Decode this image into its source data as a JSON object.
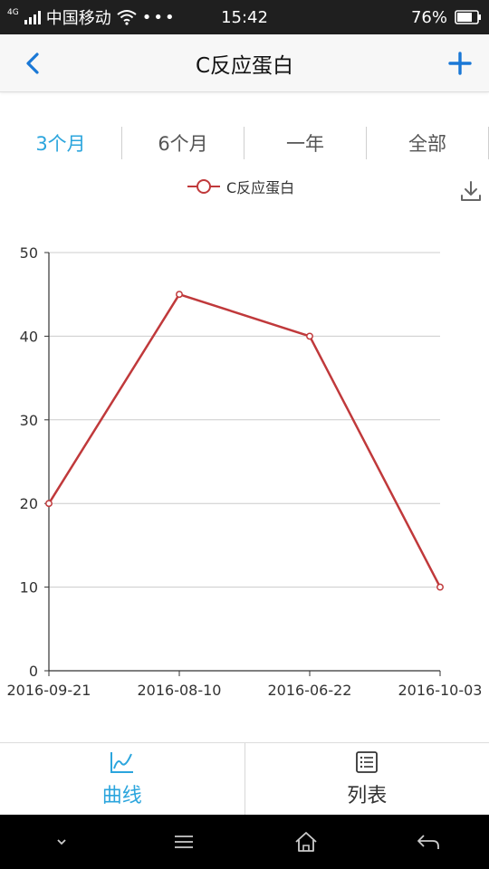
{
  "status_bar": {
    "network_badge": "4G",
    "carrier": "中国移动",
    "more": "•••",
    "time": "15:42",
    "battery": "76%"
  },
  "header": {
    "back_icon": "chevron-left-icon",
    "title": "C反应蛋白",
    "add_icon": "plus-icon"
  },
  "range_tabs": [
    {
      "label": "3个月",
      "active": true
    },
    {
      "label": "6个月",
      "active": false
    },
    {
      "label": "一年",
      "active": false
    },
    {
      "label": "全部",
      "active": false
    }
  ],
  "legend": {
    "label": "C反应蛋白"
  },
  "chart_data": {
    "type": "line",
    "categories": [
      "2016-09-21",
      "2016-08-10",
      "2016-06-22",
      "2016-10-03"
    ],
    "series": [
      {
        "name": "C反应蛋白",
        "values": [
          20,
          45,
          40,
          10
        ],
        "color": "#c0393b"
      }
    ],
    "ylim": [
      0,
      50
    ],
    "yticks": [
      0,
      10,
      20,
      30,
      40,
      50
    ],
    "grid": true,
    "legend_position": "top-center"
  },
  "bottom_tabs": [
    {
      "label": "曲线",
      "icon": "line-chart-icon",
      "active": true
    },
    {
      "label": "列表",
      "icon": "list-icon",
      "active": false
    }
  ],
  "colors": {
    "accent": "#2ba5dd",
    "line": "#c0393b",
    "grid": "#cccccc"
  }
}
